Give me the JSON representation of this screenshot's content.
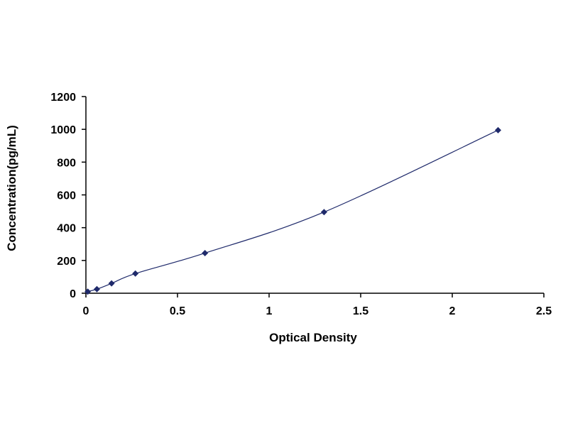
{
  "chart_data": {
    "type": "scatter",
    "title": "",
    "xlabel": "Optical Density",
    "ylabel": "Concentration(pg/mL)",
    "xlim": [
      0,
      2.5
    ],
    "ylim": [
      0,
      1200
    ],
    "xticks": [
      0,
      0.5,
      1,
      1.5,
      2,
      2.5
    ],
    "yticks": [
      0,
      200,
      400,
      600,
      800,
      1000,
      1200
    ],
    "xtick_labels": [
      "0",
      "0.5",
      "1",
      "1.5",
      "2",
      "2.5"
    ],
    "ytick_labels": [
      "0",
      "200",
      "400",
      "600",
      "800",
      "1000",
      "1200"
    ],
    "grid": false,
    "legend": "none",
    "series": [
      {
        "marker": "diamond",
        "smooth_line": true,
        "color": "#1f2a6b",
        "points": [
          {
            "x": 0.01,
            "y": 10
          },
          {
            "x": 0.06,
            "y": 25
          },
          {
            "x": 0.14,
            "y": 60
          },
          {
            "x": 0.27,
            "y": 120
          },
          {
            "x": 0.65,
            "y": 245
          },
          {
            "x": 1.3,
            "y": 495
          },
          {
            "x": 2.25,
            "y": 995
          }
        ]
      }
    ]
  }
}
